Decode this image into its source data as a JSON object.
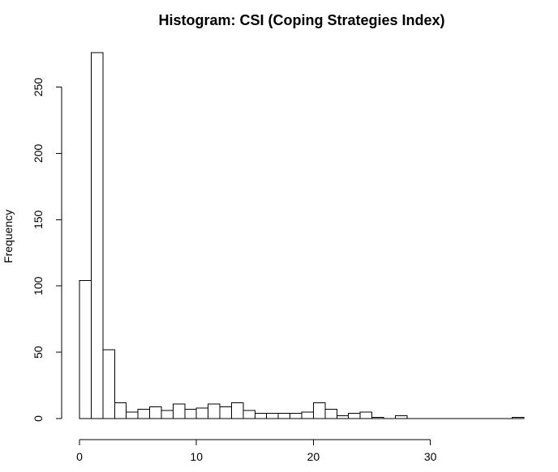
{
  "chart_data": {
    "type": "bar",
    "title": "Histogram: CSI  (Coping Strategies Index)",
    "xlabel": "",
    "ylabel": "Frequency",
    "xlim": [
      0,
      38
    ],
    "ylim": [
      0,
      280
    ],
    "bin_width": 1,
    "bin_starts": [
      0,
      1,
      2,
      3,
      4,
      5,
      6,
      7,
      8,
      9,
      10,
      11,
      12,
      13,
      14,
      15,
      16,
      17,
      18,
      19,
      20,
      21,
      22,
      23,
      24,
      25,
      26,
      27,
      28,
      29,
      30,
      31,
      32,
      33,
      34,
      35,
      36,
      37
    ],
    "values": [
      104,
      276,
      52,
      12,
      5,
      7,
      9,
      6,
      11,
      7,
      8,
      11,
      9,
      12,
      6,
      4,
      4,
      4,
      4,
      5,
      12,
      7,
      2,
      4,
      5,
      1,
      0,
      2,
      0,
      0,
      0,
      0,
      0,
      0,
      0,
      0,
      0,
      1
    ],
    "x_ticks": [
      0,
      10,
      20,
      30
    ],
    "x_tick_labels": [
      "0",
      "10",
      "20",
      "30"
    ],
    "y_ticks": [
      0,
      50,
      100,
      150,
      200,
      250
    ],
    "y_tick_labels": [
      "0",
      "50",
      "100",
      "150",
      "200",
      "250"
    ],
    "grid": false,
    "legend": "none"
  }
}
